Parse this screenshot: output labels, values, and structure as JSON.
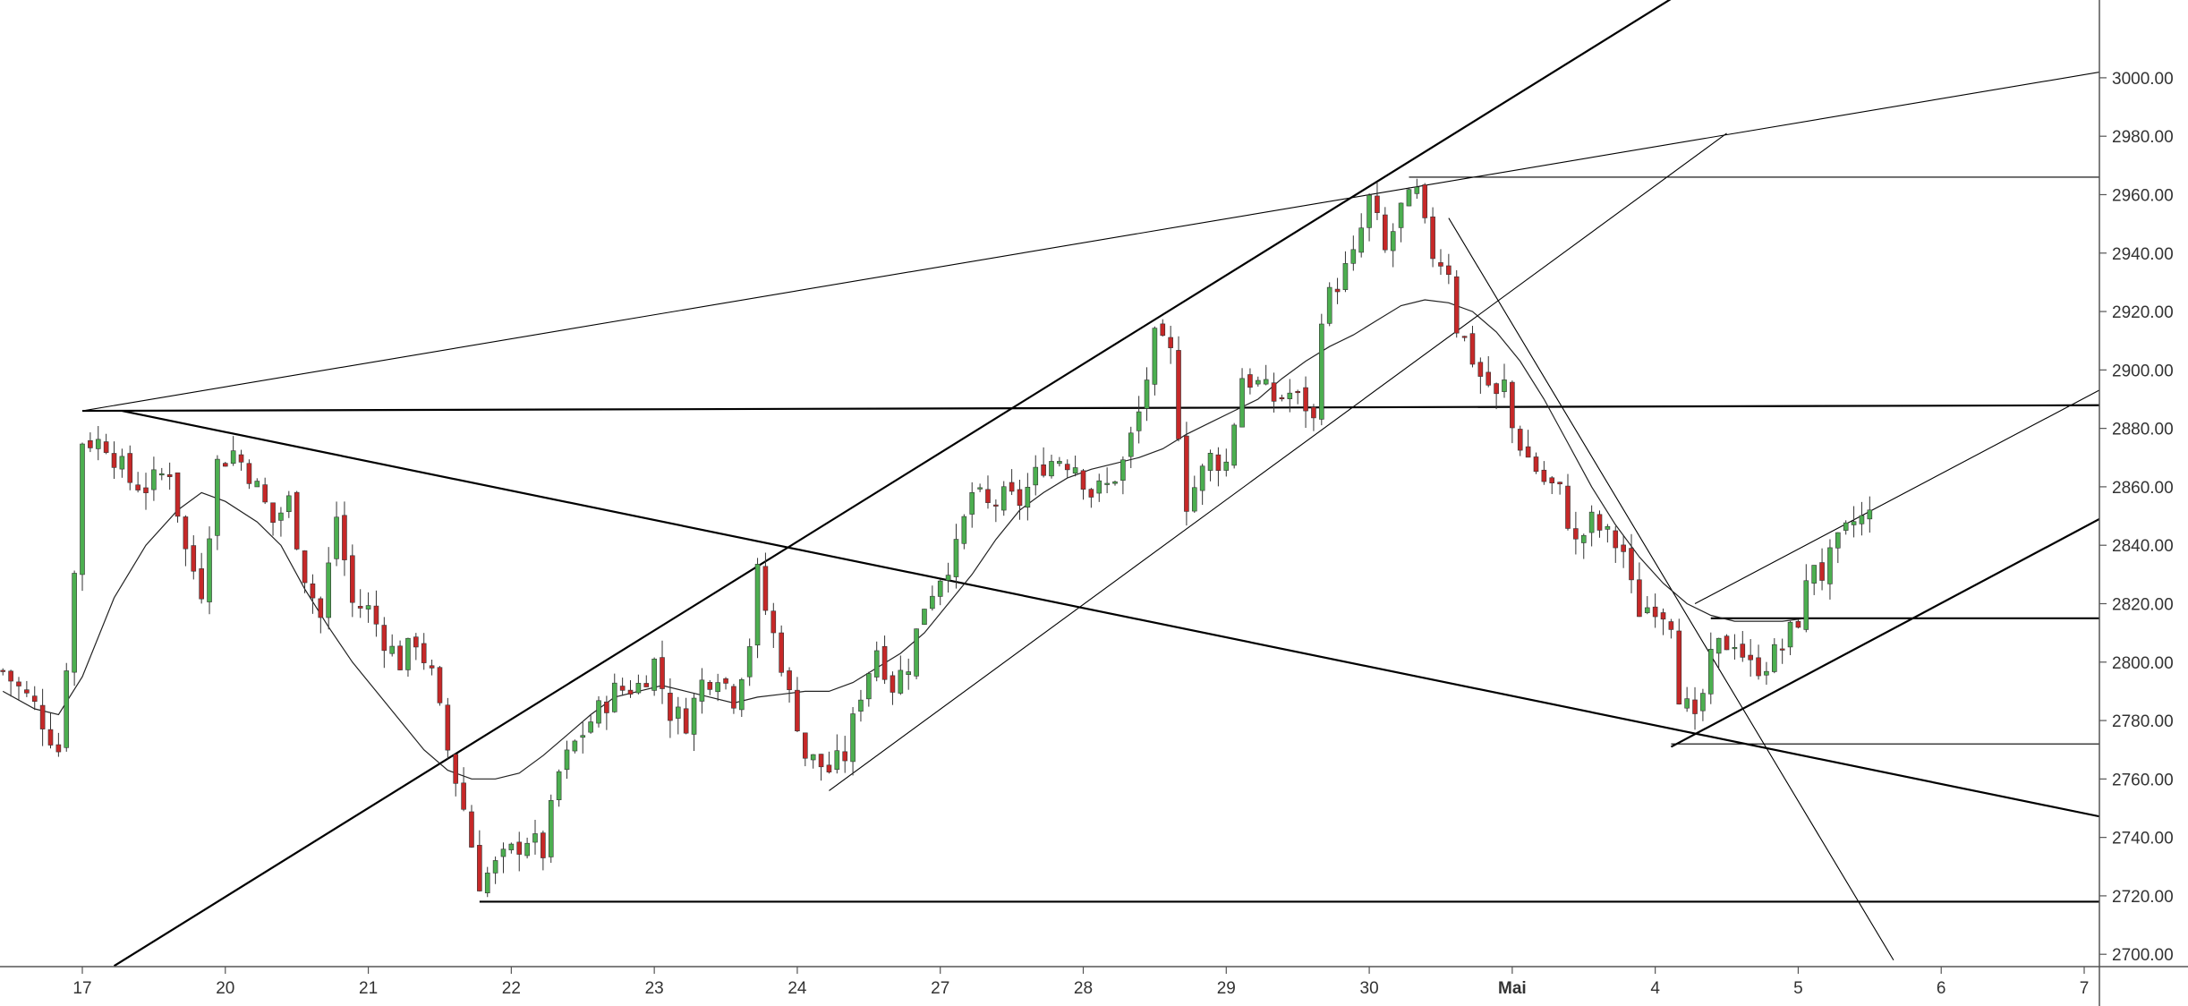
{
  "chart_data": {
    "type": "candlestick",
    "title": "",
    "xlabel": "",
    "ylabel": "",
    "ylim": [
      2697,
      3011
    ],
    "y_ticks": [
      "2700.00",
      "2720.00",
      "2740.00",
      "2760.00",
      "2780.00",
      "2800.00",
      "2820.00",
      "2840.00",
      "2860.00",
      "2880.00",
      "2900.00",
      "2920.00",
      "2940.00",
      "2960.00",
      "2980.00",
      "3000.00"
    ],
    "x_ticks": [
      "17",
      "20",
      "21",
      "22",
      "23",
      "24",
      "27",
      "28",
      "29",
      "30",
      "Mai",
      "4",
      "5",
      "6",
      "7"
    ],
    "x_ticks_bold": [
      "Mai"
    ],
    "grid": false,
    "colors": {
      "up": "#26a69a",
      "up_fill": "#4caf50",
      "down": "#ef5350",
      "down_fill": "#c62828",
      "wick": "#333333",
      "lines": "#000000",
      "background": "#ffffff"
    },
    "candle_index_range": [
      0,
      275
    ],
    "day_tick_candle_index": {
      "17": 10,
      "20": 28,
      "21": 46,
      "22": 64,
      "23": 82,
      "24": 100,
      "27": 118,
      "28": 136,
      "29": 154,
      "30": 172,
      "Mai": 190,
      "4": 208,
      "5": 226,
      "6": 244,
      "7": 262
    },
    "ohlc_anchors": [
      [
        0,
        2797
      ],
      [
        4,
        2785
      ],
      [
        7,
        2770
      ],
      [
        9,
        2830
      ],
      [
        10,
        2876
      ],
      [
        13,
        2875
      ],
      [
        16,
        2862
      ],
      [
        18,
        2860
      ],
      [
        21,
        2866
      ],
      [
        23,
        2838
      ],
      [
        25,
        2825
      ],
      [
        27,
        2868
      ],
      [
        29,
        2872
      ],
      [
        31,
        2865
      ],
      [
        34,
        2848
      ],
      [
        36,
        2855
      ],
      [
        38,
        2830
      ],
      [
        40,
        2815
      ],
      [
        42,
        2850
      ],
      [
        44,
        2820
      ],
      [
        46,
        2818
      ],
      [
        48,
        2808
      ],
      [
        50,
        2800
      ],
      [
        52,
        2808
      ],
      [
        54,
        2795
      ],
      [
        56,
        2770
      ],
      [
        58,
        2750
      ],
      [
        60,
        2725
      ],
      [
        62,
        2730
      ],
      [
        64,
        2735
      ],
      [
        66,
        2740
      ],
      [
        68,
        2735
      ],
      [
        70,
        2762
      ],
      [
        72,
        2772
      ],
      [
        74,
        2780
      ],
      [
        77,
        2790
      ],
      [
        80,
        2792
      ],
      [
        82,
        2800
      ],
      [
        84,
        2783
      ],
      [
        86,
        2780
      ],
      [
        88,
        2793
      ],
      [
        90,
        2797
      ],
      [
        92,
        2788
      ],
      [
        94,
        2807
      ],
      [
        95,
        2830
      ],
      [
        96,
        2818
      ],
      [
        98,
        2800
      ],
      [
        99,
        2788
      ],
      [
        100,
        2780
      ],
      [
        101,
        2768
      ],
      [
        104,
        2763
      ],
      [
        106,
        2768
      ],
      [
        108,
        2790
      ],
      [
        110,
        2805
      ],
      [
        112,
        2792
      ],
      [
        114,
        2800
      ],
      [
        116,
        2820
      ],
      [
        118,
        2830
      ],
      [
        120,
        2838
      ],
      [
        122,
        2858
      ],
      [
        124,
        2853
      ],
      [
        126,
        2856
      ],
      [
        128,
        2855
      ],
      [
        131,
        2868
      ],
      [
        133,
        2870
      ],
      [
        135,
        2868
      ],
      [
        137,
        2858
      ],
      [
        139,
        2860
      ],
      [
        141,
        2868
      ],
      [
        143,
        2885
      ],
      [
        145,
        2910
      ],
      [
        147,
        2905
      ],
      [
        148,
        2880
      ],
      [
        149,
        2855
      ],
      [
        150,
        2860
      ],
      [
        152,
        2870
      ],
      [
        154,
        2868
      ],
      [
        156,
        2898
      ],
      [
        158,
        2895
      ],
      [
        160,
        2890
      ],
      [
        162,
        2892
      ],
      [
        164,
        2888
      ],
      [
        165,
        2882
      ],
      [
        166,
        2920
      ],
      [
        168,
        2930
      ],
      [
        170,
        2938
      ],
      [
        172,
        2958
      ],
      [
        173,
        2950
      ],
      [
        174,
        2940
      ],
      [
        176,
        2955
      ],
      [
        178,
        2960
      ],
      [
        179,
        2948
      ],
      [
        180,
        2940
      ],
      [
        182,
        2935
      ],
      [
        183,
        2915
      ],
      [
        184,
        2910
      ],
      [
        186,
        2898
      ],
      [
        187,
        2895
      ],
      [
        188,
        2890
      ],
      [
        189,
        2895
      ],
      [
        190,
        2880
      ],
      [
        192,
        2870
      ],
      [
        194,
        2862
      ],
      [
        196,
        2858
      ],
      [
        198,
        2840
      ],
      [
        200,
        2848
      ],
      [
        202,
        2843
      ],
      [
        204,
        2838
      ],
      [
        205,
        2825
      ],
      [
        206,
        2818
      ],
      [
        208,
        2820
      ],
      [
        210,
        2815
      ],
      [
        211,
        2790
      ],
      [
        213,
        2778
      ],
      [
        215,
        2800
      ],
      [
        216,
        2805
      ],
      [
        218,
        2808
      ],
      [
        220,
        2798
      ],
      [
        222,
        2800
      ],
      [
        224,
        2805
      ],
      [
        226,
        2815
      ],
      [
        228,
        2835
      ],
      [
        229,
        2830
      ],
      [
        231,
        2840
      ],
      [
        233,
        2848
      ],
      [
        235,
        2850
      ]
    ],
    "moving_average_points": [
      [
        0,
        2790
      ],
      [
        4,
        2784
      ],
      [
        7,
        2782
      ],
      [
        10,
        2795
      ],
      [
        14,
        2822
      ],
      [
        18,
        2840
      ],
      [
        22,
        2852
      ],
      [
        25,
        2858
      ],
      [
        28,
        2855
      ],
      [
        32,
        2848
      ],
      [
        35,
        2840
      ],
      [
        38,
        2825
      ],
      [
        41,
        2812
      ],
      [
        44,
        2800
      ],
      [
        47,
        2790
      ],
      [
        50,
        2780
      ],
      [
        53,
        2770
      ],
      [
        56,
        2763
      ],
      [
        59,
        2760
      ],
      [
        62,
        2760
      ],
      [
        65,
        2762
      ],
      [
        68,
        2768
      ],
      [
        71,
        2775
      ],
      [
        74,
        2782
      ],
      [
        77,
        2788
      ],
      [
        80,
        2790
      ],
      [
        83,
        2792
      ],
      [
        86,
        2790
      ],
      [
        89,
        2788
      ],
      [
        92,
        2786
      ],
      [
        95,
        2788
      ],
      [
        98,
        2789
      ],
      [
        101,
        2790
      ],
      [
        104,
        2790
      ],
      [
        107,
        2793
      ],
      [
        110,
        2798
      ],
      [
        113,
        2803
      ],
      [
        116,
        2810
      ],
      [
        119,
        2820
      ],
      [
        122,
        2830
      ],
      [
        125,
        2842
      ],
      [
        128,
        2852
      ],
      [
        131,
        2858
      ],
      [
        134,
        2863
      ],
      [
        137,
        2866
      ],
      [
        140,
        2868
      ],
      [
        143,
        2870
      ],
      [
        146,
        2873
      ],
      [
        149,
        2878
      ],
      [
        152,
        2882
      ],
      [
        155,
        2886
      ],
      [
        158,
        2890
      ],
      [
        161,
        2897
      ],
      [
        164,
        2903
      ],
      [
        167,
        2908
      ],
      [
        170,
        2912
      ],
      [
        173,
        2917
      ],
      [
        176,
        2922
      ],
      [
        179,
        2924
      ],
      [
        182,
        2923
      ],
      [
        185,
        2920
      ],
      [
        188,
        2913
      ],
      [
        191,
        2903
      ],
      [
        194,
        2890
      ],
      [
        197,
        2875
      ],
      [
        200,
        2860
      ],
      [
        203,
        2847
      ],
      [
        206,
        2836
      ],
      [
        209,
        2827
      ],
      [
        212,
        2820
      ],
      [
        215,
        2816
      ],
      [
        218,
        2814
      ],
      [
        221,
        2814
      ],
      [
        224,
        2814
      ],
      [
        227,
        2815
      ]
    ],
    "trend_lines": [
      {
        "x1": 10,
        "y1": 2886,
        "x2": 275,
        "y2": 3007,
        "weight": "thin"
      },
      {
        "x1": 10,
        "y1": 2886,
        "x2": 275,
        "y2": 2888,
        "weight": "thick"
      },
      {
        "x1": 15,
        "y1": 2886,
        "x2": 275,
        "y2": 2741,
        "weight": "thick"
      },
      {
        "x1": 14,
        "y1": 2696,
        "x2": 210,
        "y2": 3027,
        "weight": "thick"
      },
      {
        "x1": 104,
        "y1": 2756,
        "x2": 217,
        "y2": 2981,
        "weight": "thin"
      },
      {
        "x1": 182,
        "y1": 2952,
        "x2": 238,
        "y2": 2698,
        "weight": "thin"
      },
      {
        "x1": 210,
        "y1": 2771,
        "x2": 275,
        "y2": 2865,
        "weight": "thick"
      },
      {
        "x1": 213,
        "y1": 2820,
        "x2": 275,
        "y2": 2909,
        "weight": "thin"
      },
      {
        "x1": 177,
        "y1": 2966,
        "x2": 275,
        "y2": 2966,
        "weight": "thin"
      },
      {
        "x1": 215,
        "y1": 2815,
        "x2": 275,
        "y2": 2815,
        "weight": "thick"
      },
      {
        "x1": 210,
        "y1": 2772,
        "x2": 275,
        "y2": 2772,
        "weight": "thin"
      },
      {
        "x1": 60,
        "y1": 2718,
        "x2": 275,
        "y2": 2718,
        "weight": "thick"
      }
    ]
  }
}
